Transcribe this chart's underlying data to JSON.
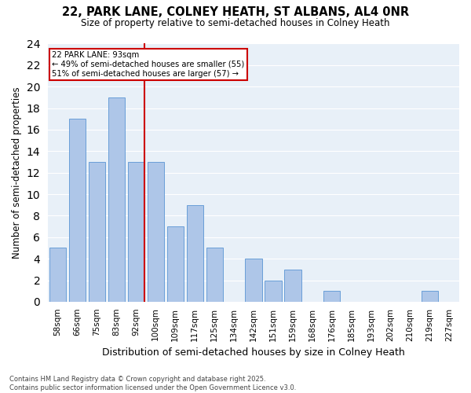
{
  "title": "22, PARK LANE, COLNEY HEATH, ST ALBANS, AL4 0NR",
  "subtitle": "Size of property relative to semi-detached houses in Colney Heath",
  "xlabel": "Distribution of semi-detached houses by size in Colney Heath",
  "ylabel": "Number of semi-detached properties",
  "categories": [
    "58sqm",
    "66sqm",
    "75sqm",
    "83sqm",
    "92sqm",
    "100sqm",
    "109sqm",
    "117sqm",
    "125sqm",
    "134sqm",
    "142sqm",
    "151sqm",
    "159sqm",
    "168sqm",
    "176sqm",
    "185sqm",
    "193sqm",
    "202sqm",
    "210sqm",
    "219sqm",
    "227sqm"
  ],
  "values": [
    5,
    17,
    13,
    19,
    13,
    13,
    7,
    9,
    5,
    0,
    4,
    2,
    3,
    0,
    1,
    0,
    0,
    0,
    0,
    1,
    0
  ],
  "bar_color": "#aec6e8",
  "bar_edgecolor": "#6a9fd8",
  "property_label": "22 PARK LANE: 93sqm",
  "annotation_line1": "← 49% of semi-detached houses are smaller (55)",
  "annotation_line2": "51% of semi-detached houses are larger (57) →",
  "vline_color": "#cc0000",
  "annotation_box_edgecolor": "#cc0000",
  "vline_index": 4,
  "ylim": [
    0,
    24
  ],
  "yticks": [
    0,
    2,
    4,
    6,
    8,
    10,
    12,
    14,
    16,
    18,
    20,
    22,
    24
  ],
  "background_color": "#e8f0f8",
  "footer_line1": "Contains HM Land Registry data © Crown copyright and database right 2025.",
  "footer_line2": "Contains public sector information licensed under the Open Government Licence v3.0."
}
